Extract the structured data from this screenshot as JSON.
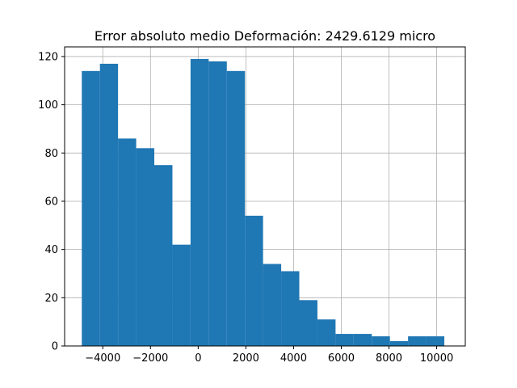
{
  "chart_data": {
    "type": "histogram",
    "title": "Error absoluto medio Deformación: 2429.6129 micro",
    "xlabel": "",
    "ylabel": "",
    "xlim": [
      -5600,
      11200
    ],
    "ylim": [
      0,
      124
    ],
    "grid": true,
    "bar_color": "#1f77b4",
    "grid_color": "#b0b0b0",
    "bins": [
      {
        "x0": -4880,
        "x1": -4120,
        "count": 114
      },
      {
        "x0": -4120,
        "x1": -3360,
        "count": 117
      },
      {
        "x0": -3360,
        "x1": -2600,
        "count": 86
      },
      {
        "x0": -2600,
        "x1": -1840,
        "count": 82
      },
      {
        "x0": -1840,
        "x1": -1080,
        "count": 75
      },
      {
        "x0": -1080,
        "x1": -320,
        "count": 42
      },
      {
        "x0": -320,
        "x1": 440,
        "count": 119
      },
      {
        "x0": 440,
        "x1": 1200,
        "count": 118
      },
      {
        "x0": 1200,
        "x1": 1960,
        "count": 114
      },
      {
        "x0": 1960,
        "x1": 2720,
        "count": 54
      },
      {
        "x0": 2720,
        "x1": 3480,
        "count": 34
      },
      {
        "x0": 3480,
        "x1": 4240,
        "count": 31
      },
      {
        "x0": 4240,
        "x1": 5000,
        "count": 19
      },
      {
        "x0": 5000,
        "x1": 5760,
        "count": 11
      },
      {
        "x0": 5760,
        "x1": 6520,
        "count": 5
      },
      {
        "x0": 6520,
        "x1": 7280,
        "count": 5
      },
      {
        "x0": 7280,
        "x1": 8040,
        "count": 4
      },
      {
        "x0": 8040,
        "x1": 8800,
        "count": 2
      },
      {
        "x0": 8800,
        "x1": 9560,
        "count": 4
      },
      {
        "x0": 9560,
        "x1": 10320,
        "count": 4
      }
    ],
    "x_ticks": [
      -4000,
      -2000,
      0,
      2000,
      4000,
      6000,
      8000,
      10000
    ],
    "x_tick_labels": [
      "−4000",
      "−2000",
      "0",
      "2000",
      "4000",
      "6000",
      "8000",
      "10000"
    ],
    "y_ticks": [
      0,
      20,
      40,
      60,
      80,
      100,
      120
    ],
    "y_tick_labels": [
      "0",
      "20",
      "40",
      "60",
      "80",
      "100",
      "120"
    ]
  }
}
